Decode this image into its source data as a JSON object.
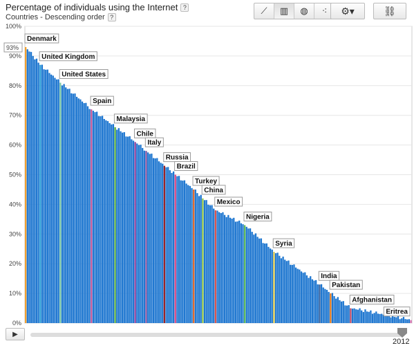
{
  "title": "Percentage of individuals using the Internet",
  "subtitle": "Countries - Descending order",
  "help_glyph": "?",
  "toolbar": {
    "buttons": [
      {
        "icon": "line-chart-icon",
        "glyph": "⟋"
      },
      {
        "icon": "bar-chart-icon",
        "glyph": "▥"
      },
      {
        "icon": "globe-icon",
        "glyph": "◍"
      },
      {
        "icon": "scatter-icon",
        "glyph": "⁖"
      }
    ],
    "settings": {
      "icon": "gear-icon",
      "glyph": "⚙▾"
    },
    "link": {
      "icon": "link-icon",
      "glyph": "⛓"
    }
  },
  "timeline": {
    "play_glyph": "▶",
    "year": "2012"
  },
  "hover_value": "93%",
  "chart_data": {
    "type": "bar",
    "title": "Percentage of individuals using the Internet",
    "subtitle": "Countries - Descending order",
    "ylim": [
      0,
      100
    ],
    "yticks": [
      "0%",
      "10%",
      "20%",
      "30%",
      "40%",
      "50%",
      "60%",
      "70%",
      "80%",
      "90%",
      "100%"
    ],
    "grid": true,
    "default_color": "#1f77d0",
    "labeled": [
      {
        "name": "Denmark",
        "value": 93,
        "color": "#f0a030"
      },
      {
        "name": "United Kingdom",
        "value": 87,
        "color": "#2e9fd8"
      },
      {
        "name": "United States",
        "value": 81,
        "color": "#7ac6a8"
      },
      {
        "name": "Spain",
        "value": 72,
        "color": "#c65a9c"
      },
      {
        "name": "Malaysia",
        "value": 66,
        "color": "#55aa44"
      },
      {
        "name": "Chile",
        "value": 61,
        "color": "#8a3f9c"
      },
      {
        "name": "Italy",
        "value": 58,
        "color": "#7a4fa0"
      },
      {
        "name": "Russia",
        "value": 53,
        "color": "#9b2226"
      },
      {
        "name": "Brazil",
        "value": 50,
        "color": "#d94a86"
      },
      {
        "name": "Turkey",
        "value": 45,
        "color": "#e06a2c"
      },
      {
        "name": "China",
        "value": 42,
        "color": "#8fc24a"
      },
      {
        "name": "Mexico",
        "value": 38,
        "color": "#d9534f"
      },
      {
        "name": "Nigeria",
        "value": 33,
        "color": "#5cb85c"
      },
      {
        "name": "Syria",
        "value": 24,
        "color": "#d4c24a"
      },
      {
        "name": "India",
        "value": 13,
        "color": "#2f5fa0"
      },
      {
        "name": "Pakistan",
        "value": 10,
        "color": "#e67e22"
      },
      {
        "name": "Afghanistan",
        "value": 5,
        "color": "#c0506b"
      },
      {
        "name": "Eritrea",
        "value": 1,
        "color": "#d56fb0"
      }
    ]
  }
}
